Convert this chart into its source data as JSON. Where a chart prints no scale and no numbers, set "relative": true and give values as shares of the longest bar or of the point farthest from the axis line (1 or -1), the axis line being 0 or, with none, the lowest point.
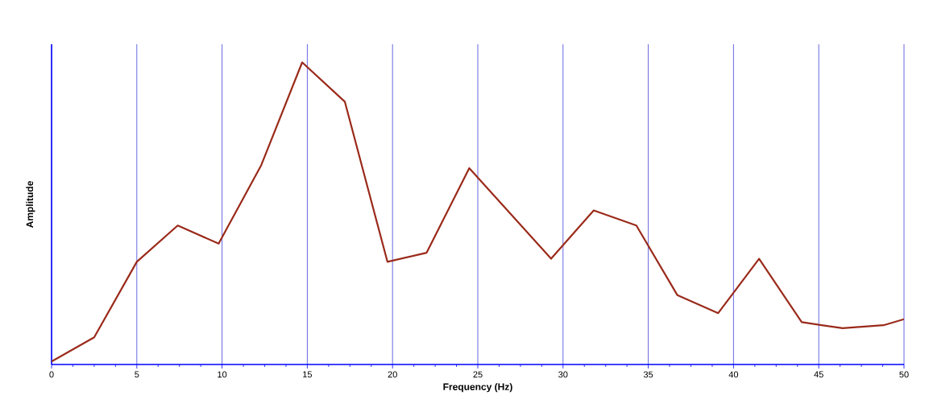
{
  "chart_data": {
    "type": "line",
    "relative": true,
    "xlabel": "Frequency (Hz)",
    "ylabel": "Amplitude",
    "xlim": [
      0,
      50
    ],
    "xticks": [
      0,
      5,
      10,
      15,
      20,
      25,
      30,
      35,
      40,
      45,
      50
    ],
    "grid": "x",
    "x": [
      0,
      2.5,
      5,
      7.4,
      9.8,
      12.3,
      14.7,
      17.2,
      19.7,
      22,
      24.5,
      29.3,
      31.8,
      34.3,
      36.7,
      39.1,
      41.5,
      44,
      46.4,
      48.8,
      50
    ],
    "series": [
      {
        "color": "#9a2a1a",
        "values": [
          0.01,
          0.09,
          0.34,
          0.46,
          0.4,
          0.66,
          1,
          0.87,
          0.34,
          0.37,
          0.65,
          0.35,
          0.51,
          0.46,
          0.23,
          0.17,
          0.35,
          0.14,
          0.12,
          0.13,
          0.15
        ]
      }
    ]
  }
}
